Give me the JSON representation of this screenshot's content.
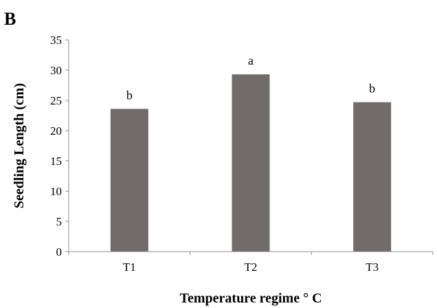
{
  "panel_label": "B",
  "chart_data": {
    "type": "bar",
    "title": "",
    "xlabel": "Temperature regime ° C",
    "ylabel": "Seedling Length (cm)",
    "categories": [
      "T1",
      "T2",
      "T3"
    ],
    "values": [
      23.6,
      29.3,
      24.7
    ],
    "significance_labels": [
      "b",
      "a",
      "b"
    ],
    "ylim": [
      0,
      35
    ],
    "yticks": [
      0,
      5,
      10,
      15,
      20,
      25,
      30,
      35
    ],
    "bar_color": "#716c6b",
    "grid": false,
    "legend": "none"
  }
}
